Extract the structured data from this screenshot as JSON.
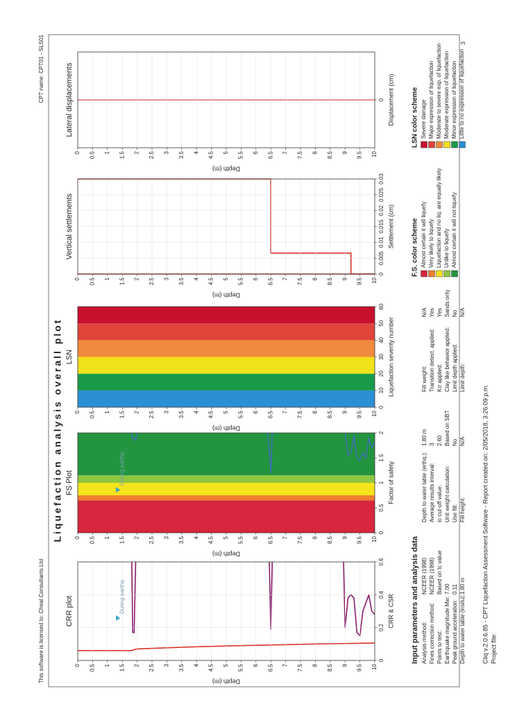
{
  "header": {
    "license": "This software is licensed to: Cheal Consultants Ltd",
    "cpt_name": "CPT name: CPT01 - SLS01",
    "page": "3"
  },
  "title": "Liquefaction analysis overall plot",
  "chart_data": [
    {
      "type": "line",
      "title": "CRR plot",
      "xlabel": "CRR & CSR",
      "ylabel": "Depth (m)",
      "xlim": [
        0,
        0.6
      ],
      "xticks": [
        0,
        0.2,
        0.4,
        0.6
      ],
      "ylim": [
        0,
        10
      ],
      "yticks": [
        0,
        0.5,
        1,
        1.5,
        2,
        2.5,
        3,
        3.5,
        4,
        4.5,
        5,
        5.5,
        6,
        6.5,
        7,
        7.5,
        8,
        8.5,
        9,
        9.5,
        10
      ],
      "invert_y": true,
      "grid": true,
      "annotation": "During earthq.",
      "series": [
        {
          "color": "#d9342b",
          "depth": [
            0,
            1.8,
            2,
            3,
            4,
            5,
            6,
            7,
            8,
            9,
            10
          ],
          "values": [
            0.06,
            0.06,
            0.07,
            0.077,
            0.083,
            0.088,
            0.092,
            0.096,
            0.1,
            0.103,
            0.106
          ]
        },
        {
          "color": "#8b1a6b",
          "depth": [
            1.82,
            1.85,
            1.9,
            1.95,
            null,
            6.45,
            6.5,
            6.55,
            null,
            8.95,
            9.0,
            9.1,
            9.2,
            9.3,
            9.4,
            9.5,
            9.6,
            9.7,
            9.8,
            9.9,
            10
          ],
          "values": [
            0.6,
            0.17,
            0.17,
            0.6,
            null,
            0.6,
            0.19,
            0.6,
            null,
            0.6,
            0.2,
            0.38,
            0.4,
            0.38,
            0.17,
            0.15,
            0.3,
            0.35,
            0.4,
            0.3,
            0.28
          ]
        }
      ]
    },
    {
      "type": "line",
      "title": "FS Plot",
      "xlabel": "Factor of safety",
      "ylabel": "Depth (m)",
      "xlim": [
        0,
        2
      ],
      "xticks": [
        0,
        0.5,
        1,
        1.5,
        2
      ],
      "ylim": [
        0,
        10
      ],
      "yticks": [
        0,
        0.5,
        1,
        1.5,
        2,
        2.5,
        3,
        3.5,
        4,
        4.5,
        5,
        5.5,
        6,
        6.5,
        7,
        7.5,
        8,
        8.5,
        9,
        9.5,
        10
      ],
      "invert_y": true,
      "grid": false,
      "annotation": "During earthq.",
      "bands": [
        {
          "from": 0,
          "to": 0.65,
          "color": "#d7263d"
        },
        {
          "from": 0.65,
          "to": 0.75,
          "color": "#f07f2e"
        },
        {
          "from": 0.75,
          "to": 1.0,
          "color": "#f5e41b"
        },
        {
          "from": 1.0,
          "to": 1.15,
          "color": "#8fc63f"
        },
        {
          "from": 1.15,
          "to": 2,
          "color": "#23953f"
        }
      ],
      "series": [
        {
          "color": "#3a6fb0",
          "depth": [
            1.8,
            1.85,
            1.9,
            1.95,
            2.0,
            null,
            6.4,
            6.5,
            6.55,
            null,
            9.0,
            9.1,
            9.2,
            9.3,
            9.4,
            9.5,
            9.6,
            9.7,
            9.8,
            9.9,
            10
          ],
          "values": [
            2,
            1.88,
            1.9,
            1.85,
            2,
            null,
            2,
            1.2,
            2,
            null,
            2,
            1.55,
            1.6,
            1.95,
            1.5,
            1.45,
            1.6,
            1.5,
            1.9,
            1.7,
            1.8
          ]
        }
      ]
    },
    {
      "type": "bands",
      "title": "LSN",
      "xlabel": "Liquefaction severity number",
      "ylabel": "Depth (m)",
      "xlim": [
        0,
        60
      ],
      "xticks": [
        0,
        10,
        20,
        30,
        40,
        50,
        60
      ],
      "ylim": [
        0,
        10
      ],
      "yticks": [
        0,
        0.5,
        1,
        1.5,
        2,
        2.5,
        3,
        3.5,
        4,
        4.5,
        5,
        5.5,
        6,
        6.5,
        7,
        7.5,
        8,
        8.5,
        9,
        9.5,
        10
      ],
      "invert_y": true,
      "grid": false,
      "bands": [
        {
          "from": 0,
          "to": 10,
          "color": "#2b8fd6"
        },
        {
          "from": 10,
          "to": 20,
          "color": "#1a9b4a"
        },
        {
          "from": 20,
          "to": 30,
          "color": "#f2e21b"
        },
        {
          "from": 30,
          "to": 40,
          "color": "#f08a3c"
        },
        {
          "from": 40,
          "to": 50,
          "color": "#e0443a"
        },
        {
          "from": 50,
          "to": 60,
          "color": "#c8102e"
        }
      ]
    },
    {
      "type": "line",
      "title": "Vertical settlements",
      "xlabel": "Settlement (cm)",
      "ylabel": "Depth (m)",
      "xlim": [
        0,
        0.03
      ],
      "xticks": [
        0,
        0.005,
        0.01,
        0.015,
        0.02,
        0.025,
        0.03
      ],
      "ylim": [
        0,
        10
      ],
      "yticks": [
        0,
        0.5,
        1,
        1.5,
        2,
        2.5,
        3,
        3.5,
        4,
        4.5,
        5,
        5.5,
        6,
        6.5,
        7,
        7.5,
        8,
        8.5,
        9,
        9.5,
        10
      ],
      "invert_y": true,
      "grid": true,
      "series": [
        {
          "color": "#d9342b",
          "depth": [
            0,
            6.5,
            6.5,
            9.2,
            9.2,
            10
          ],
          "values": [
            0.03,
            0.03,
            0.0066,
            0.0066,
            0,
            0
          ]
        },
        {
          "color": "#d9342b",
          "depth": [
            0,
            10
          ],
          "values": [
            0,
            0
          ]
        }
      ]
    },
    {
      "type": "line",
      "title": "Lateral displacements",
      "xlabel": "Displacement (cm)",
      "ylabel": "Depth (m)",
      "xlim": [
        -1,
        1
      ],
      "xticks": [
        0
      ],
      "ylim": [
        0,
        10
      ],
      "yticks": [
        0,
        0.5,
        1,
        1.5,
        2,
        2.5,
        3,
        3.5,
        4,
        4.5,
        5,
        5.5,
        6,
        6.5,
        7,
        7.5,
        8,
        8.5,
        9,
        9.5,
        10
      ],
      "invert_y": true,
      "grid": true,
      "series": [
        {
          "color": "#d9342b",
          "depth": [
            0,
            10
          ],
          "values": [
            0,
            0
          ]
        }
      ]
    }
  ],
  "parameters": {
    "title": "Input parameters and analysis data",
    "columns": [
      [
        [
          "Analysis method:",
          "NCEER (1998)"
        ],
        [
          "Fines correction method:",
          "NCEER (1998)"
        ],
        [
          "Points to test:",
          "Based on Ic value"
        ],
        [
          "Earthquake magnitude Mw:",
          "7.00"
        ],
        [
          "Peak ground acceleration:",
          "0.11"
        ],
        [
          "Depth to water table (insitu):",
          "1.80 m"
        ]
      ],
      [
        [
          "Depth to water table (erthq.):",
          "1.80 m"
        ],
        [
          "Average results interval:",
          "3"
        ],
        [
          "Ic cut-off value:",
          "2.60"
        ],
        [
          "Unit weight calculation:",
          "Based on SBT"
        ],
        [
          "Use fill:",
          "No"
        ],
        [
          "Fill height:",
          "N/A"
        ]
      ],
      [
        [
          "Fill weight:",
          "N/A"
        ],
        [
          "Transition detect. applied:",
          "Yes"
        ],
        [
          "Kσ applied:",
          "Yes"
        ],
        [
          "Clay like behavior applied:",
          "Sands only"
        ],
        [
          "Limit depth applied:",
          "No"
        ],
        [
          "Limit depth:",
          "N/A"
        ]
      ]
    ]
  },
  "fs_legend": {
    "title": "F.S. color scheme",
    "items": [
      {
        "label": "Almost certain it will liquefy",
        "color": "#d7263d"
      },
      {
        "label": "Very likely to liquefy",
        "color": "#f07f2e"
      },
      {
        "label": "Liquefaction and no liq. are equally likely",
        "color": "#f5e41b"
      },
      {
        "label": "Unlike to liquefy",
        "color": "#8fc63f"
      },
      {
        "label": "Almost certain it will not liquefy",
        "color": "#23953f"
      }
    ]
  },
  "lsn_legend": {
    "title": "LSN color scheme",
    "items": [
      {
        "label": "Severe damage",
        "color": "#c8102e"
      },
      {
        "label": "Major expression of liquefaction",
        "color": "#e0443a"
      },
      {
        "label": "Moderate to severe exp. of liquefaction",
        "color": "#f08a3c"
      },
      {
        "label": "Moderate expression of liquefaction",
        "color": "#f2e21b"
      },
      {
        "label": "Minor expression of liquefaction",
        "color": "#1a9b4a"
      },
      {
        "label": "Little to no expression of liquefaction",
        "color": "#2b8fd6"
      }
    ]
  },
  "footer": {
    "software": "Cliq v.2.0.6.85 - CPT Liquefaction Assessment Software - Report created on: 2/05/2018, 3:26:09 p.m.",
    "project": "Project file:"
  }
}
